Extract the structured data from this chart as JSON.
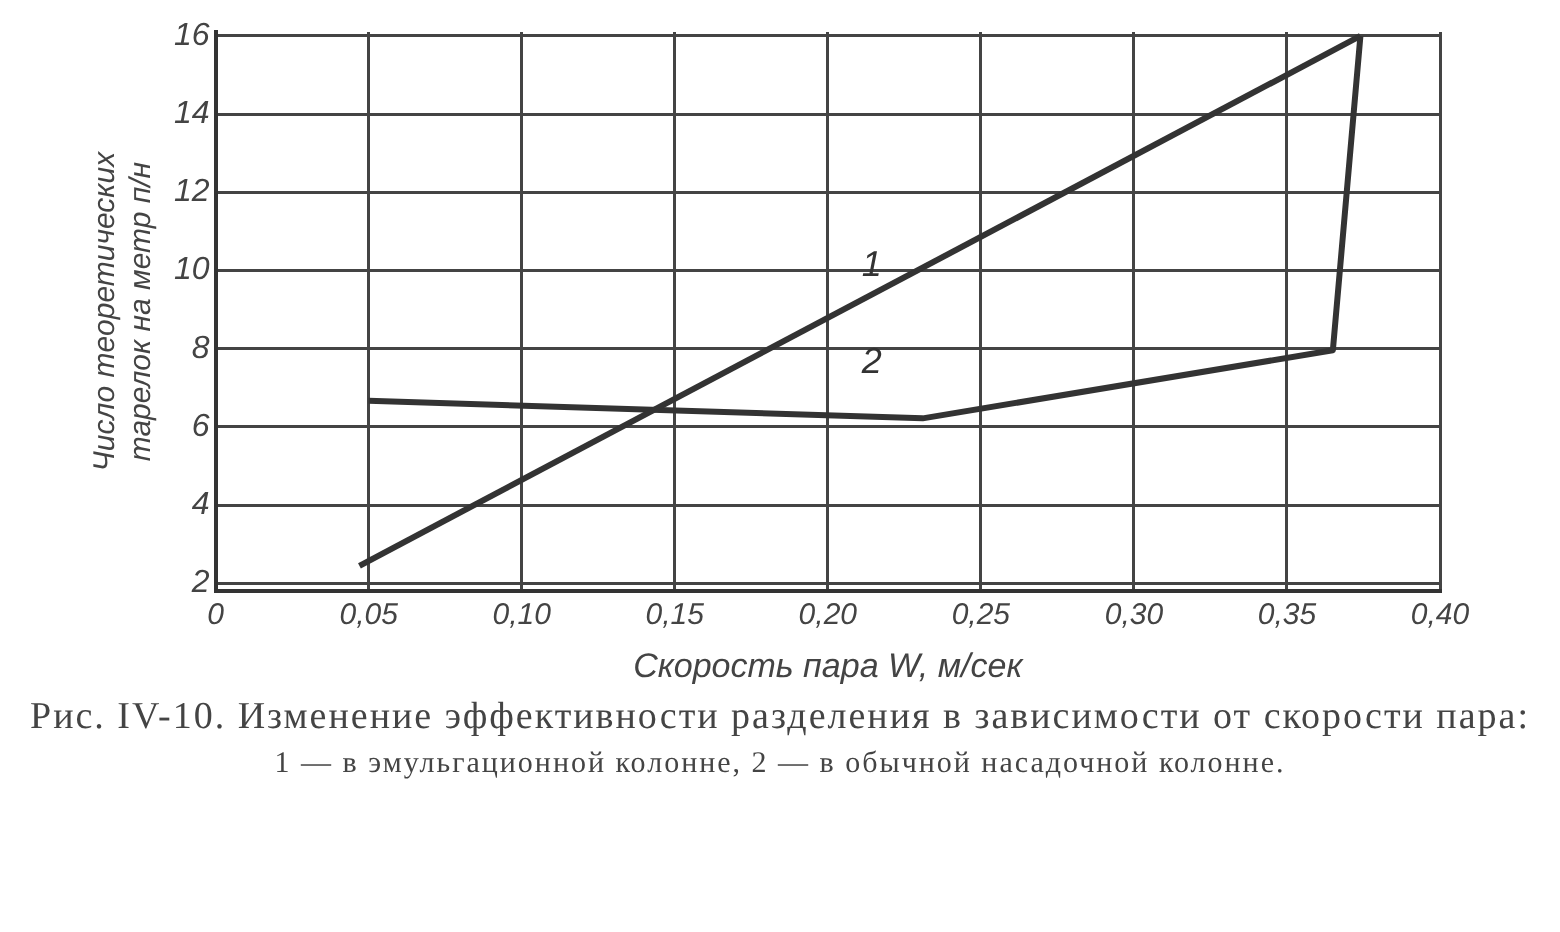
{
  "chart_data": {
    "type": "line",
    "title": "Рис. IV-10. Изменение эффективности разделения в зависимости от скорости пара:",
    "xlabel": "Скорость пара W, м/сек",
    "ylabel": "Число теоретических тарелок на метр п/н",
    "series": [
      {
        "name": "1",
        "color": "#333333",
        "x": [
          0.047,
          0.374
        ],
        "values": [
          2.45,
          16
        ]
      },
      {
        "name": "2",
        "color": "#333333",
        "x": [
          0.05,
          0.231,
          0.365,
          0.374
        ],
        "values": [
          6.67,
          6.22,
          7.96,
          16
        ]
      }
    ],
    "xlim": [
      0,
      0.4
    ],
    "ylim": [
      1.8,
      16.1
    ],
    "xticks": [
      0,
      {
        "value": 0.05,
        "label": "0,05"
      },
      {
        "value": 0.1,
        "label": "0,10"
      },
      {
        "value": 0.15,
        "label": "0,15"
      },
      {
        "value": 0.2,
        "label": "0,20"
      },
      {
        "value": 0.25,
        "label": "0,25"
      },
      {
        "value": 0.3,
        "label": "0,30"
      },
      {
        "value": 0.35,
        "label": "0,35"
      },
      {
        "value": 0.4,
        "label": "0,40"
      }
    ],
    "yticks": [
      2,
      4,
      6,
      8,
      10,
      12,
      14,
      16
    ],
    "grid": true,
    "legend": false,
    "marker": "none",
    "line_style": "solid",
    "annotations": [
      "1 — в эмульгационной колонне, 2 — в обычной насадочной колонне."
    ]
  }
}
